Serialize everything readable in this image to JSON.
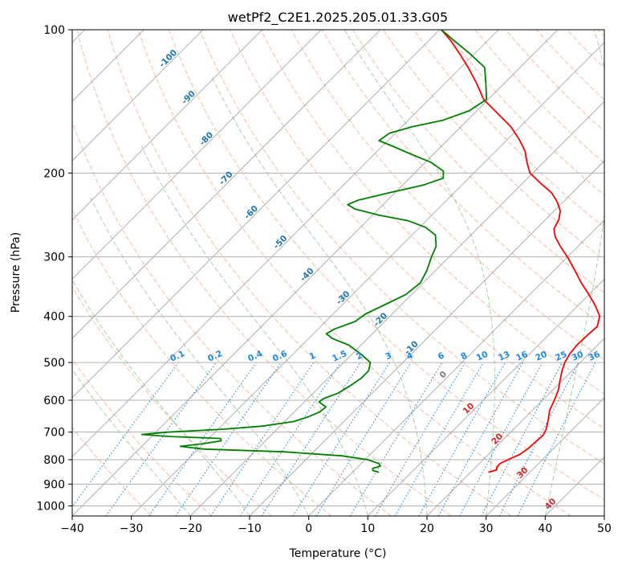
{
  "chart_data": {
    "type": "line",
    "title": "wetPf2_C2E1.2025.205.01.33.G05",
    "xlabel": "Temperature (°C)",
    "ylabel": "Pressure (hPa)",
    "xlim": [
      -40,
      50
    ],
    "ylim": [
      1050,
      100
    ],
    "y_scale": "log",
    "x_ticks": [
      -40,
      -30,
      -20,
      -10,
      0,
      10,
      20,
      30,
      40,
      50
    ],
    "x_tick_labels": [
      "−40",
      "−30",
      "−20",
      "−10",
      "0",
      "10",
      "20",
      "30",
      "40",
      "50"
    ],
    "y_ticks": [
      100,
      200,
      300,
      400,
      500,
      600,
      700,
      800,
      900,
      1000
    ],
    "y_tick_labels": [
      "100",
      "200",
      "300",
      "400",
      "500",
      "600",
      "700",
      "800",
      "900",
      "1000"
    ],
    "grid": true,
    "skew": "45°",
    "colors": {
      "temperature": "#ff0000",
      "dewpoint": "#008000",
      "dry_adiabat": "#f4a582",
      "moist_adiabat": "#7fbf7b",
      "mixing_ratio": "#1e88e5",
      "isotherm": "#7f7f7f",
      "wetbulb_label": "#d62728"
    },
    "series": [
      {
        "points": [
          [
            850,
            23.0
          ],
          [
            840,
            24.0
          ],
          [
            830,
            23.6
          ],
          [
            815,
            23.5
          ],
          [
            800,
            24.2
          ],
          [
            780,
            25.3
          ],
          [
            760,
            25.7
          ],
          [
            740,
            25.8
          ],
          [
            710,
            26.0
          ],
          [
            690,
            25.5
          ],
          [
            660,
            24.3
          ],
          [
            630,
            22.9
          ],
          [
            600,
            22.0
          ],
          [
            570,
            20.9
          ],
          [
            545,
            19.6
          ],
          [
            520,
            18.3
          ],
          [
            500,
            17.4
          ],
          [
            480,
            16.8
          ],
          [
            460,
            16.5
          ],
          [
            440,
            16.6
          ],
          [
            420,
            16.8
          ],
          [
            400,
            15.5
          ],
          [
            380,
            13.0
          ],
          [
            360,
            10.0
          ],
          [
            340,
            6.7
          ],
          [
            320,
            3.5
          ],
          [
            300,
            0.0
          ],
          [
            285,
            -3.0
          ],
          [
            272,
            -5.5
          ],
          [
            262,
            -7.0
          ],
          [
            250,
            -7.8
          ],
          [
            240,
            -9.0
          ],
          [
            230,
            -11.0
          ],
          [
            220,
            -13.5
          ],
          [
            210,
            -17.0
          ],
          [
            200,
            -20.5
          ],
          [
            190,
            -22.8
          ],
          [
            180,
            -25.0
          ],
          [
            170,
            -28.0
          ],
          [
            160,
            -31.5
          ],
          [
            150,
            -36.0
          ],
          [
            140,
            -40.8
          ],
          [
            130,
            -44.5
          ],
          [
            120,
            -48.8
          ],
          [
            112,
            -52.7
          ],
          [
            105,
            -56.5
          ],
          [
            100,
            -59.7
          ]
        ]
      },
      {
        "points": [
          [
            850,
            4.5
          ],
          [
            843,
            3.2
          ],
          [
            835,
            2.8
          ],
          [
            825,
            3.7
          ],
          [
            815,
            3.0
          ],
          [
            800,
            0.5
          ],
          [
            785,
            -4.5
          ],
          [
            770,
            -15.0
          ],
          [
            760,
            -29.0
          ],
          [
            750,
            -33.5
          ],
          [
            740,
            -30.0
          ],
          [
            730,
            -27.5
          ],
          [
            722,
            -28.0
          ],
          [
            715,
            -37.0
          ],
          [
            708,
            -42.0
          ],
          [
            700,
            -38.0
          ],
          [
            690,
            -29.0
          ],
          [
            680,
            -23.0
          ],
          [
            665,
            -18.5
          ],
          [
            650,
            -16.8
          ],
          [
            635,
            -15.7
          ],
          [
            620,
            -15.5
          ],
          [
            605,
            -17.5
          ],
          [
            595,
            -17.3
          ],
          [
            580,
            -15.8
          ],
          [
            560,
            -15.0
          ],
          [
            540,
            -14.4
          ],
          [
            520,
            -14.4
          ],
          [
            500,
            -15.5
          ],
          [
            480,
            -18.5
          ],
          [
            460,
            -22.0
          ],
          [
            445,
            -26.0
          ],
          [
            435,
            -27.8
          ],
          [
            425,
            -27.2
          ],
          [
            410,
            -25.0
          ],
          [
            395,
            -24.5
          ],
          [
            380,
            -23.0
          ],
          [
            360,
            -21.0
          ],
          [
            340,
            -20.5
          ],
          [
            320,
            -21.5
          ],
          [
            300,
            -23.0
          ],
          [
            285,
            -24.0
          ],
          [
            270,
            -26.0
          ],
          [
            260,
            -29.0
          ],
          [
            252,
            -33.0
          ],
          [
            245,
            -39.0
          ],
          [
            238,
            -44.0
          ],
          [
            233,
            -46.0
          ],
          [
            228,
            -45.0
          ],
          [
            220,
            -41.0
          ],
          [
            212,
            -36.5
          ],
          [
            205,
            -34.3
          ],
          [
            198,
            -35.5
          ],
          [
            190,
            -39.0
          ],
          [
            183,
            -43.5
          ],
          [
            176,
            -48.0
          ],
          [
            171,
            -51.5
          ],
          [
            165,
            -51.0
          ],
          [
            160,
            -48.3
          ],
          [
            155,
            -44.2
          ],
          [
            148,
            -41.3
          ],
          [
            140,
            -40.3
          ],
          [
            130,
            -43.0
          ],
          [
            120,
            -46.0
          ],
          [
            112,
            -51.0
          ],
          [
            105,
            -56.0
          ],
          [
            100,
            -59.7
          ]
        ]
      }
    ],
    "dry_adiabats": [
      -30,
      -20,
      -10,
      0,
      10,
      20,
      30,
      40,
      50,
      60,
      70,
      80,
      90,
      100,
      110,
      120,
      130,
      140,
      150,
      160,
      170,
      180,
      190,
      200,
      210,
      220,
      230,
      240
    ],
    "moist_adiabats": [
      -20,
      -10,
      0,
      10,
      20,
      30,
      40,
      50
    ],
    "mixing_ratio_lines": [
      0.1,
      0.2,
      0.4,
      0.6,
      1,
      1.5,
      2,
      3,
      4,
      6,
      8,
      10,
      13,
      16,
      20,
      25,
      30,
      36
    ],
    "isotherm_annotations": [
      "-100",
      "-90",
      "-80",
      "-70",
      "-60",
      "-50",
      "-40",
      "-30",
      "-20",
      "-10"
    ],
    "mixing_ratio_annotations": [
      "0.1",
      "0.2",
      "0.4",
      "0.6",
      "1",
      "1.5",
      "2",
      "3",
      "4",
      "6",
      "8",
      "10",
      "13",
      "16",
      "20",
      "25",
      "30",
      "36"
    ],
    "wetbulb_annotations": [
      "0",
      "10",
      "20",
      "30",
      "40"
    ]
  }
}
